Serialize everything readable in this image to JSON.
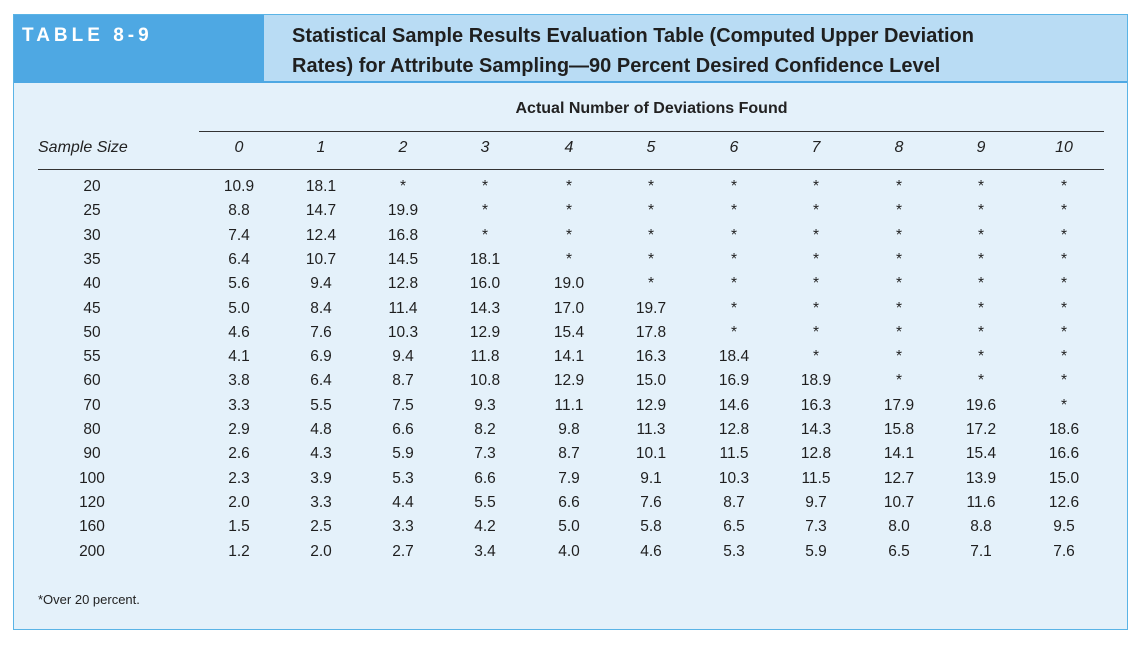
{
  "table_label": "TABLE 8-9",
  "title_line1": "Statistical Sample Results Evaluation Table (Computed Upper Deviation",
  "title_line2": "Rates) for Attribute Sampling—90 Percent Desired Confidence Level",
  "spanner": "Actual Number of Deviations Found",
  "sample_size_label": "Sample Size",
  "columns": [
    "0",
    "1",
    "2",
    "3",
    "4",
    "5",
    "6",
    "7",
    "8",
    "9",
    "10"
  ],
  "rows": [
    {
      "size": "20",
      "values": [
        "10.9",
        "18.1",
        "*",
        "*",
        "*",
        "*",
        "*",
        "*",
        "*",
        "*",
        "*"
      ]
    },
    {
      "size": "25",
      "values": [
        "8.8",
        "14.7",
        "19.9",
        "*",
        "*",
        "*",
        "*",
        "*",
        "*",
        "*",
        "*"
      ]
    },
    {
      "size": "30",
      "values": [
        "7.4",
        "12.4",
        "16.8",
        "*",
        "*",
        "*",
        "*",
        "*",
        "*",
        "*",
        "*"
      ]
    },
    {
      "size": "35",
      "values": [
        "6.4",
        "10.7",
        "14.5",
        "18.1",
        "*",
        "*",
        "*",
        "*",
        "*",
        "*",
        "*"
      ]
    },
    {
      "size": "40",
      "values": [
        "5.6",
        "9.4",
        "12.8",
        "16.0",
        "19.0",
        "*",
        "*",
        "*",
        "*",
        "*",
        "*"
      ]
    },
    {
      "size": "45",
      "values": [
        "5.0",
        "8.4",
        "11.4",
        "14.3",
        "17.0",
        "19.7",
        "*",
        "*",
        "*",
        "*",
        "*"
      ]
    },
    {
      "size": "50",
      "values": [
        "4.6",
        "7.6",
        "10.3",
        "12.9",
        "15.4",
        "17.8",
        "*",
        "*",
        "*",
        "*",
        "*"
      ]
    },
    {
      "size": "55",
      "values": [
        "4.1",
        "6.9",
        "9.4",
        "11.8",
        "14.1",
        "16.3",
        "18.4",
        "*",
        "*",
        "*",
        "*"
      ]
    },
    {
      "size": "60",
      "values": [
        "3.8",
        "6.4",
        "8.7",
        "10.8",
        "12.9",
        "15.0",
        "16.9",
        "18.9",
        "*",
        "*",
        "*"
      ]
    },
    {
      "size": "70",
      "values": [
        "3.3",
        "5.5",
        "7.5",
        "9.3",
        "11.1",
        "12.9",
        "14.6",
        "16.3",
        "17.9",
        "19.6",
        "*"
      ]
    },
    {
      "size": "80",
      "values": [
        "2.9",
        "4.8",
        "6.6",
        "8.2",
        "9.8",
        "11.3",
        "12.8",
        "14.3",
        "15.8",
        "17.2",
        "18.6"
      ]
    },
    {
      "size": "90",
      "values": [
        "2.6",
        "4.3",
        "5.9",
        "7.3",
        "8.7",
        "10.1",
        "11.5",
        "12.8",
        "14.1",
        "15.4",
        "16.6"
      ]
    },
    {
      "size": "100",
      "values": [
        "2.3",
        "3.9",
        "5.3",
        "6.6",
        "7.9",
        "9.1",
        "10.3",
        "11.5",
        "12.7",
        "13.9",
        "15.0"
      ]
    },
    {
      "size": "120",
      "values": [
        "2.0",
        "3.3",
        "4.4",
        "5.5",
        "6.6",
        "7.6",
        "8.7",
        "9.7",
        "10.7",
        "11.6",
        "12.6"
      ]
    },
    {
      "size": "160",
      "values": [
        "1.5",
        "2.5",
        "3.3",
        "4.2",
        "5.0",
        "5.8",
        "6.5",
        "7.3",
        "8.0",
        "8.8",
        "9.5"
      ]
    },
    {
      "size": "200",
      "values": [
        "1.2",
        "2.0",
        "2.7",
        "3.4",
        "4.0",
        "4.6",
        "5.3",
        "5.9",
        "6.5",
        "7.1",
        "7.6"
      ]
    }
  ],
  "footnote": "*Over 20 percent.",
  "colors": {
    "label_bg": "#4ea8e3",
    "title_bg": "#b9dcf4",
    "panel_bg": "#e4f1fa"
  }
}
